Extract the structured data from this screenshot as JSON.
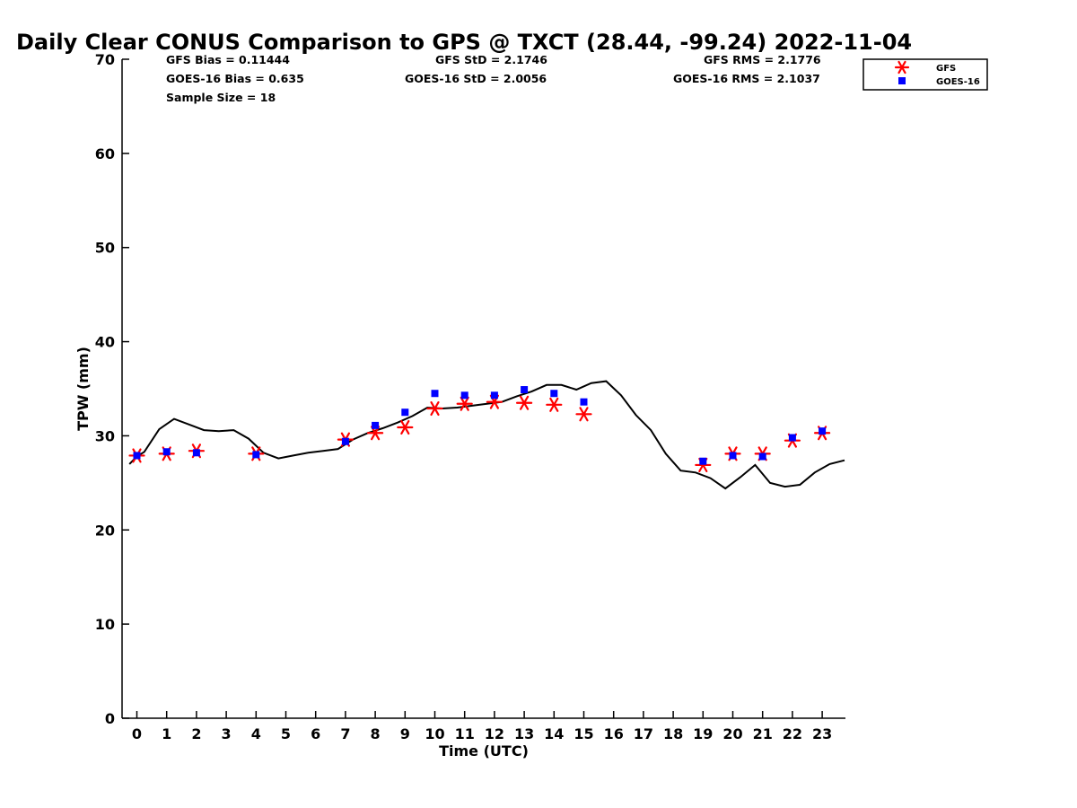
{
  "chart_data": {
    "type": "line",
    "title": "Daily Clear CONUS Comparison to GPS @ TXCT (28.44, -99.24) 2022-11-04",
    "xlabel": "Time (UTC)",
    "ylabel": "TPW (mm)",
    "xlim": [
      -0.5,
      23.7
    ],
    "ylim": [
      0,
      70
    ],
    "xticks": [
      0,
      1,
      2,
      3,
      4,
      5,
      6,
      7,
      8,
      9,
      10,
      11,
      12,
      13,
      14,
      15,
      16,
      17,
      18,
      19,
      20,
      21,
      22,
      23
    ],
    "yticks": [
      0,
      10,
      20,
      30,
      40,
      50,
      60,
      70
    ],
    "grid": false,
    "legend_position": "top-right (outside plot)",
    "stats": {
      "gfs_bias": "GFS Bias = 0.11444",
      "goes_bias": "GOES-16 Bias = 0.635",
      "sample_size": "Sample Size = 18",
      "gfs_std": "GFS StD = 2.1746",
      "goes_std": "GOES-16 StD = 2.0056",
      "gfs_rms": "GFS RMS = 2.1776",
      "goes_rms": "GOES-16 RMS = 2.1037"
    },
    "legend": [
      {
        "label": "GFS",
        "color": "#ff0000",
        "marker": "asterisk"
      },
      {
        "label": "GOES-16",
        "color": "#0000ff",
        "marker": "square"
      }
    ],
    "series": [
      {
        "name": "GPS",
        "style": "line",
        "color": "#000000",
        "x": [
          -0.25,
          0.0,
          0.25,
          0.75,
          1.25,
          1.75,
          2.25,
          2.75,
          3.25,
          3.75,
          4.25,
          4.75,
          5.25,
          5.75,
          6.25,
          6.75,
          7.25,
          7.75,
          8.25,
          8.75,
          9.25,
          9.75,
          10.25,
          10.75,
          11.25,
          11.75,
          12.25,
          12.75,
          13.25,
          13.75,
          14.25,
          14.75,
          15.25,
          15.75,
          16.25,
          16.75,
          17.25,
          17.75,
          18.25,
          18.75,
          19.25,
          19.75,
          20.25,
          20.75,
          21.25,
          21.75,
          22.25,
          22.75,
          23.25,
          23.75
        ],
        "y": [
          27.0,
          27.8,
          28.3,
          30.7,
          31.8,
          31.2,
          30.6,
          30.5,
          30.6,
          29.7,
          28.2,
          27.6,
          27.9,
          28.2,
          28.4,
          28.6,
          29.6,
          30.3,
          30.8,
          31.4,
          32.1,
          33.0,
          32.9,
          33.0,
          33.2,
          33.4,
          33.6,
          34.2,
          34.7,
          35.4,
          35.4,
          34.9,
          35.6,
          35.8,
          34.3,
          32.2,
          30.6,
          28.1,
          26.3,
          26.1,
          25.5,
          24.4,
          25.6,
          26.9,
          25.0,
          24.6,
          24.8,
          26.1,
          27.0,
          27.4
        ]
      },
      {
        "name": "GFS",
        "style": "markers",
        "color": "#ff0000",
        "x": [
          0,
          1,
          2,
          4,
          7,
          8,
          9,
          10,
          11,
          12,
          13,
          14,
          15,
          19,
          20,
          21,
          22,
          23
        ],
        "y": [
          27.9,
          28.1,
          28.4,
          28.1,
          29.6,
          30.3,
          30.9,
          32.9,
          33.4,
          33.6,
          33.5,
          33.3,
          32.3,
          26.9,
          28.1,
          28.1,
          29.5,
          30.3
        ]
      },
      {
        "name": "GOES-16",
        "style": "markers",
        "color": "#0000ff",
        "x": [
          0,
          1,
          2,
          4,
          7,
          8,
          9,
          10,
          11,
          12,
          13,
          14,
          15,
          19,
          20,
          21,
          22,
          23
        ],
        "y": [
          27.9,
          28.3,
          28.2,
          28.0,
          29.4,
          31.1,
          32.5,
          34.5,
          34.3,
          34.3,
          34.9,
          34.5,
          33.6,
          27.3,
          27.9,
          27.8,
          29.8,
          30.5
        ]
      }
    ]
  }
}
